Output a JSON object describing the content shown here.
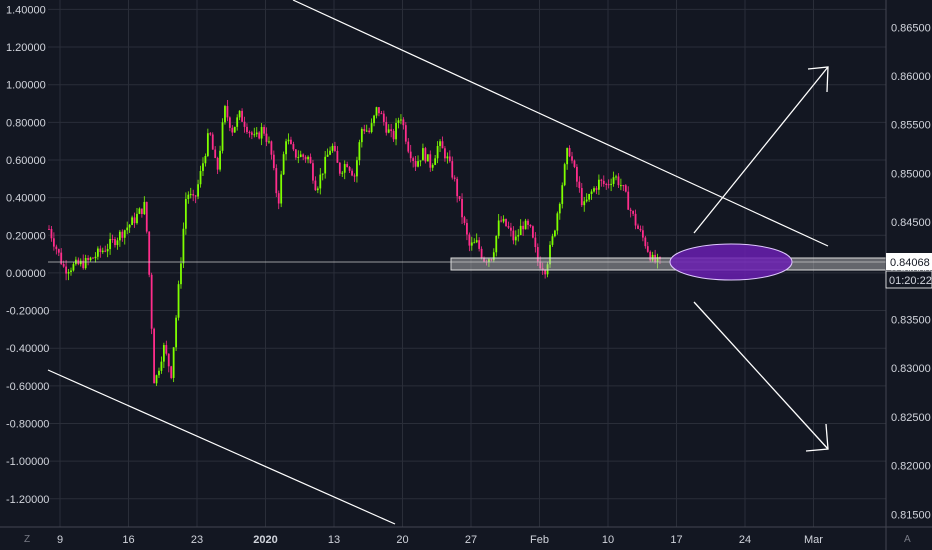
{
  "chart_data": {
    "type": "candlestick",
    "left_axis": {
      "ticks": [
        "1.40000",
        "1.20000",
        "1.00000",
        "0.80000",
        "0.60000",
        "0.40000",
        "0.20000",
        "0.00000",
        "-0.20000",
        "-0.40000",
        "-0.60000",
        "-0.80000",
        "-1.00000",
        "-1.20000"
      ],
      "range": [
        -1.35,
        1.45
      ]
    },
    "right_axis": {
      "ticks": [
        "0.86500",
        "0.86000",
        "0.85500",
        "0.85000",
        "0.84500",
        "0.84000",
        "0.83500",
        "0.83000",
        "0.82500",
        "0.82000",
        "0.81500"
      ],
      "range": [
        0.8137,
        0.8678
      ],
      "current_price": "0.84068",
      "countdown": "01:20:22"
    },
    "x_axis": {
      "ticks": [
        "9",
        "16",
        "23",
        "2020",
        "13",
        "20",
        "27",
        "Feb",
        "10",
        "17",
        "24",
        "Mar"
      ]
    },
    "corner_labels": {
      "left": "Z",
      "right": "A"
    },
    "candle_path": [
      [
        0,
        0.8443
      ],
      [
        2,
        0.8402
      ],
      [
        5,
        0.8409
      ],
      [
        8,
        0.8427
      ],
      [
        11,
        0.8451
      ],
      [
        12.6,
        0.8468
      ],
      [
        13.2,
        0.8385
      ],
      [
        13.8,
        0.8282
      ],
      [
        15,
        0.8322
      ],
      [
        16,
        0.8295
      ],
      [
        17,
        0.8385
      ],
      [
        18,
        0.8482
      ],
      [
        19,
        0.847
      ],
      [
        20,
        0.8505
      ],
      [
        21,
        0.8543
      ],
      [
        22,
        0.85
      ],
      [
        23,
        0.8566
      ],
      [
        24,
        0.8545
      ],
      [
        25,
        0.856
      ],
      [
        27,
        0.8534
      ],
      [
        28,
        0.8547
      ],
      [
        29,
        0.8525
      ],
      [
        30,
        0.8468
      ],
      [
        31,
        0.8538
      ],
      [
        32,
        0.852
      ],
      [
        34,
        0.8516
      ],
      [
        35,
        0.8485
      ],
      [
        37,
        0.853
      ],
      [
        38,
        0.8502
      ],
      [
        39,
        0.8512
      ],
      [
        40,
        0.8498
      ],
      [
        41,
        0.8548
      ],
      [
        42,
        0.8542
      ],
      [
        43,
        0.8568
      ],
      [
        44,
        0.855
      ],
      [
        45,
        0.8535
      ],
      [
        46,
        0.8562
      ],
      [
        47,
        0.8528
      ],
      [
        48,
        0.851
      ],
      [
        49,
        0.8522
      ],
      [
        50,
        0.8508
      ],
      [
        51,
        0.853
      ],
      [
        52,
        0.8518
      ],
      [
        53,
        0.8495
      ],
      [
        54,
        0.846
      ],
      [
        55,
        0.8425
      ],
      [
        56,
        0.8428
      ],
      [
        57,
        0.8412
      ],
      [
        58,
        0.8415
      ],
      [
        59,
        0.8452
      ],
      [
        60,
        0.8445
      ],
      [
        61,
        0.843
      ],
      [
        62,
        0.8448
      ],
      [
        63,
        0.8442
      ],
      [
        64,
        0.841
      ],
      [
        65,
        0.8402
      ],
      [
        66,
        0.8435
      ],
      [
        67,
        0.848
      ],
      [
        68,
        0.8528
      ],
      [
        69,
        0.8495
      ],
      [
        70,
        0.8465
      ],
      [
        71,
        0.848
      ],
      [
        72,
        0.8491
      ],
      [
        73,
        0.8488
      ],
      [
        74,
        0.8498
      ],
      [
        75,
        0.8487
      ],
      [
        76,
        0.8465
      ],
      [
        77,
        0.8445
      ],
      [
        78,
        0.843
      ],
      [
        79,
        0.8411
      ],
      [
        80,
        0.8407
      ]
    ],
    "dates": {
      "start": "2019-12-06",
      "end": "2020-02-14",
      "axis_end": "2020-03-03"
    },
    "colors": {
      "background": "#131722",
      "grid": "#2a2e39",
      "bull": "#7fff00",
      "bear": "#ff2d8b",
      "drawing": "#ffffff",
      "label_bg": "#ffffff",
      "label_text": "#131722",
      "ellipse_fill": "#7b2cbf",
      "text": "#d1d4dc"
    }
  }
}
